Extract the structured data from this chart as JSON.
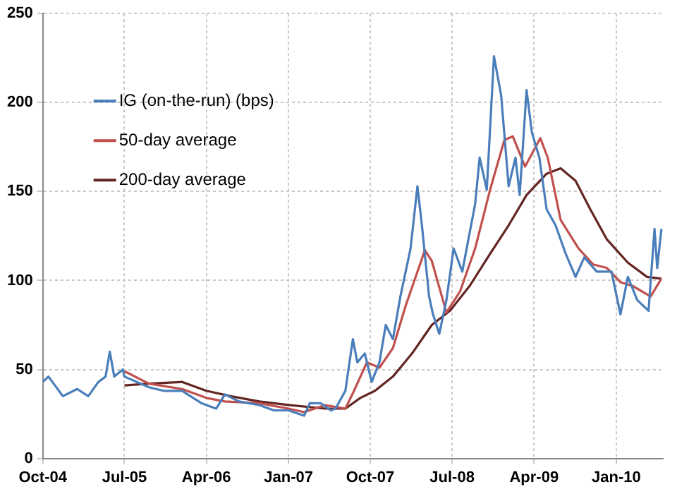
{
  "chart_data": {
    "type": "line",
    "legend": "top left",
    "grid": true,
    "marker": "none",
    "line_style": "solid",
    "xlim": [
      "2004-10-01",
      "2010-06-06"
    ],
    "xticks": [
      {
        "value": "2004-10-01",
        "label": "Oct-04"
      },
      {
        "value": "2005-07-01",
        "label": "Jul-05"
      },
      {
        "value": "2006-04-01",
        "label": "Apr-06"
      },
      {
        "value": "2007-01-01",
        "label": "Jan-07"
      },
      {
        "value": "2007-10-01",
        "label": "Oct-07"
      },
      {
        "value": "2008-07-01",
        "label": "Jul-08"
      },
      {
        "value": "2009-04-01",
        "label": "Apr-09"
      },
      {
        "value": "2010-01-01",
        "label": "Jan-10"
      }
    ],
    "ylim": [
      0,
      250
    ],
    "yticks": [
      0,
      50,
      100,
      150,
      200,
      250
    ],
    "series": [
      {
        "name": "IG (on-the-run) (bps)",
        "color": "#4a7ebb",
        "x": [
          "2004-10-01",
          "2004-10-20",
          "2004-12-07",
          "2005-01-24",
          "2005-03-02",
          "2005-04-05",
          "2005-04-29",
          "2005-05-13",
          "2005-05-28",
          "2005-06-26",
          "2005-07-01",
          "2005-09-21",
          "2005-11-09",
          "2006-01-10",
          "2006-03-16",
          "2006-05-04",
          "2006-06-02",
          "2006-07-19",
          "2006-09-25",
          "2006-11-13",
          "2007-01-01",
          "2007-02-22",
          "2007-03-13",
          "2007-04-19",
          "2007-05-22",
          "2007-06-07",
          "2007-07-10",
          "2007-08-04",
          "2007-08-19",
          "2007-09-13",
          "2007-10-06",
          "2007-11-01",
          "2007-11-22",
          "2007-12-16",
          "2008-01-10",
          "2008-02-13",
          "2008-03-07",
          "2008-03-22",
          "2008-04-15",
          "2008-04-28",
          "2008-05-19",
          "2008-06-12",
          "2008-07-06",
          "2008-08-04",
          "2008-09-16",
          "2008-10-01",
          "2008-10-25",
          "2008-11-18",
          "2008-12-12",
          "2009-01-06",
          "2009-01-29",
          "2009-02-12",
          "2009-03-07",
          "2009-03-25",
          "2009-04-19",
          "2009-05-13",
          "2009-06-12",
          "2009-07-16",
          "2009-08-18",
          "2009-09-16",
          "2009-10-28",
          "2009-12-16",
          "2010-01-15",
          "2010-02-09",
          "2010-03-12",
          "2010-04-19",
          "2010-05-09",
          "2010-05-18",
          "2010-06-01"
        ],
        "values": [
          43,
          46,
          35,
          39,
          35,
          43,
          46,
          60,
          46,
          50,
          46,
          40,
          38,
          38,
          31,
          28,
          36,
          32,
          30,
          27,
          27,
          24,
          31,
          31,
          27,
          28,
          38,
          67,
          54,
          59,
          43,
          54,
          75,
          67,
          91,
          118,
          153,
          131,
          91,
          81,
          70,
          89,
          118,
          105,
          143,
          169,
          151,
          226,
          204,
          153,
          169,
          148,
          207,
          183,
          169,
          140,
          131,
          115,
          102,
          113,
          105,
          105,
          81,
          102,
          89,
          83,
          129,
          107,
          129
        ]
      },
      {
        "name": "50-day average",
        "color": "#c0504d",
        "x": [
          "2005-07-01",
          "2005-09-21",
          "2006-01-10",
          "2006-04-01",
          "2006-06-02",
          "2006-09-25",
          "2007-01-01",
          "2007-02-22",
          "2007-05-03",
          "2007-07-10",
          "2007-08-08",
          "2007-09-20",
          "2007-11-01",
          "2007-12-16",
          "2008-01-28",
          "2008-04-01",
          "2008-04-24",
          "2008-06-12",
          "2008-07-28",
          "2008-09-16",
          "2008-11-05",
          "2008-12-23",
          "2009-01-20",
          "2009-03-02",
          "2009-04-22",
          "2009-05-17",
          "2009-06-29",
          "2009-08-28",
          "2009-10-16",
          "2009-12-01",
          "2010-01-15",
          "2010-02-24",
          "2010-04-26",
          "2010-06-01"
        ],
        "values": [
          49,
          42,
          39,
          34,
          32,
          31,
          28,
          26,
          30,
          28,
          38,
          54,
          51,
          62,
          86,
          117,
          111,
          82,
          94,
          118,
          151,
          179,
          181,
          164,
          180,
          169,
          134,
          118,
          109,
          107,
          99,
          97,
          91,
          101
        ]
      },
      {
        "name": "200-day average",
        "color": "#632523",
        "x": [
          "2005-07-01",
          "2005-09-21",
          "2006-01-10",
          "2006-04-01",
          "2006-06-21",
          "2006-09-25",
          "2007-01-01",
          "2007-05-03",
          "2007-07-10",
          "2007-08-29",
          "2007-10-17",
          "2007-12-16",
          "2008-02-18",
          "2008-04-24",
          "2008-06-24",
          "2008-08-29",
          "2008-11-05",
          "2009-01-06",
          "2009-03-07",
          "2009-05-13",
          "2009-06-29",
          "2009-08-18",
          "2009-10-06",
          "2009-12-01",
          "2010-02-09",
          "2010-04-14",
          "2010-06-01"
        ],
        "values": [
          41,
          42,
          43,
          38,
          35,
          32,
          30,
          28,
          28,
          34,
          38,
          46,
          59,
          75,
          83,
          97,
          115,
          131,
          148,
          160,
          163,
          156,
          140,
          123,
          110,
          102,
          101
        ]
      }
    ]
  }
}
